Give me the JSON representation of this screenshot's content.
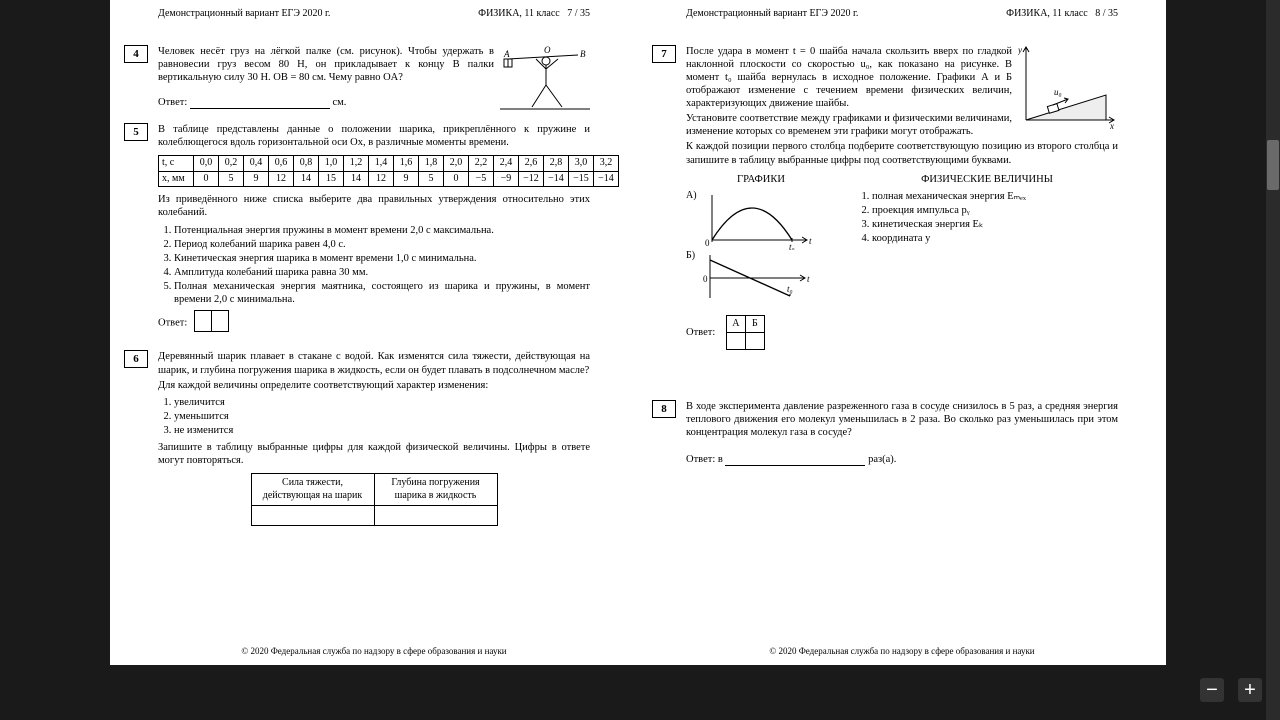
{
  "viewer": {
    "bg": "#1a1a1a",
    "page_bg": "#ffffff"
  },
  "header": {
    "left": "Демонстрационный вариант ЕГЭ 2020 г.",
    "right_base": "ФИЗИКА, 11 класс"
  },
  "page_left_num": "7 / 35",
  "page_right_num": "8 / 35",
  "footer": "© 2020 Федеральная служба по надзору в сфере образования и науки",
  "q4": {
    "num": "4",
    "text": "Человек несёт груз на лёгкой палке (см. рисунок). Чтобы удержать в равновесии груз весом 80 Н, он прикладывает к концу B палки вертикальную силу 30 Н. OB = 80 см. Чему равно OA?",
    "answer_label": "Ответ:",
    "unit": "см."
  },
  "q5": {
    "num": "5",
    "intro": "В таблице представлены данные о положении шарика, прикреплённого к пружине и колеблющегося вдоль горизонтальной оси Ox, в различные моменты времени.",
    "row1_label": "t, с",
    "row2_label": "x, мм",
    "t": [
      "0,0",
      "0,2",
      "0,4",
      "0,6",
      "0,8",
      "1,0",
      "1,2",
      "1,4",
      "1,6",
      "1,8",
      "2,0",
      "2,2",
      "2,4",
      "2,6",
      "2,8",
      "3,0",
      "3,2"
    ],
    "x": [
      "0",
      "5",
      "9",
      "12",
      "14",
      "15",
      "14",
      "12",
      "9",
      "5",
      "0",
      "−5",
      "−9",
      "−12",
      "−14",
      "−15",
      "−14"
    ],
    "after": "Из приведённого ниже списка выберите два правильных утверждения относительно этих колебаний.",
    "opts": [
      "Потенциальная энергия пружины в момент времени 2,0 с максимальна.",
      "Период колебаний шарика равен 4,0 с.",
      "Кинетическая энергия шарика в момент времени 1,0 с минимальна.",
      "Амплитуда колебаний шарика равна 30 мм.",
      "Полная механическая энергия маятника, состоящего из шарика и пружины, в момент времени 2,0 с минимальна."
    ],
    "answer_label": "Ответ:"
  },
  "q6": {
    "num": "6",
    "text": "Деревянный шарик плавает в стакане с водой. Как изменятся сила тяжести, действующая на шарик, и глубина погружения шарика в жидкость, если он будет плавать в подсолнечном масле?",
    "instr": "Для каждой величины определите соответствующий характер изменения:",
    "opts": [
      "увеличится",
      "уменьшится",
      "не изменится"
    ],
    "after": "Запишите в таблицу выбранные цифры для каждой физической величины. Цифры в ответе могут повторяться.",
    "col1": "Сила тяжести, действующая на шарик",
    "col2": "Глубина погружения шарика в жидкость"
  },
  "q7": {
    "num": "7",
    "text": "После удара в момент t = 0 шайба начала скользить вверх по гладкой наклонной плоскости со скоростью u₀, как показано на рисунке. В момент t₀ шайба вернулась в исходное положение. Графики А и Б отображают изменение с течением времени физических величин, характеризующих движение шайбы.",
    "text2": "Установите соответствие между графиками и физическими величинами, изменение которых со временем эти графики могут отображать.",
    "text3": "К каждой позиции первого столбца подберите соответствующую позицию из второго столбца и запишите в таблицу выбранные цифры под соответствующими буквами.",
    "col_graphs": "ГРАФИКИ",
    "col_phys": "ФИЗИЧЕСКИЕ ВЕЛИЧИНЫ",
    "labelA": "А)",
    "labelB": "Б)",
    "phys": [
      "полная механическая энергия Eₘₑₓ",
      "проекция импульса pᵧ",
      "кинетическая энергия Eₖ",
      "координата y"
    ],
    "ab_A": "А",
    "ab_B": "Б",
    "answer_label": "Ответ:"
  },
  "q8": {
    "num": "8",
    "text": "В ходе эксперимента давление разреженного газа в сосуде снизилось в 5 раз, а средняя энергия теплового движения его молекул уменьшилась в 2 раза. Во сколько раз уменьшилась при этом концентрация молекул газа в сосуде?",
    "answer_label": "Ответ: в",
    "unit": "раз(а)."
  },
  "zoom": {
    "minus": "−",
    "plus": "+"
  }
}
